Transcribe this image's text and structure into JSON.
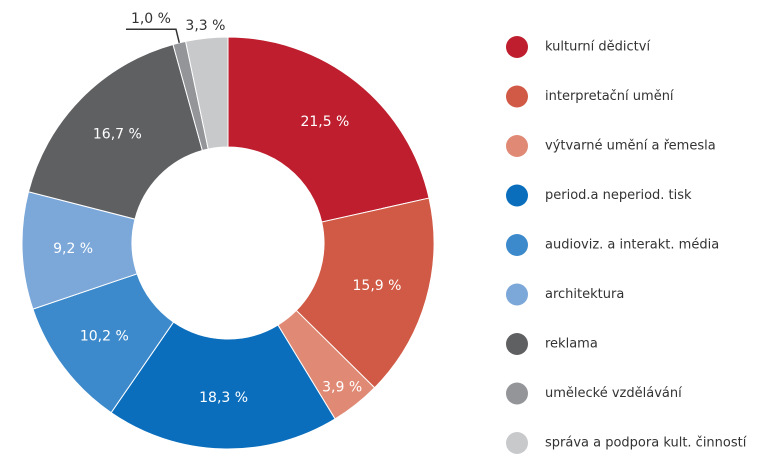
{
  "chart_data": {
    "type": "donut",
    "categories": [
      "kulturní dědictví",
      "interpretační umění",
      "výtvarné umění a řemesla",
      "period.a neperiod. tisk",
      "audioviz. a interakt. média",
      "architektura",
      "reklama",
      "umělecké vzdělávání",
      "správa a podpora kult. činností"
    ],
    "values": [
      21.5,
      15.9,
      3.9,
      18.3,
      10.2,
      9.2,
      16.7,
      1.0,
      3.3
    ],
    "value_labels": [
      "21,5 %",
      "15,9 %",
      "3,9 %",
      "18,3 %",
      "10,2 %",
      "9,2 %",
      "16,7 %",
      "1,0 %",
      "3,3 %"
    ],
    "colors": [
      "#be1e2d",
      "#d05a45",
      "#e08a75",
      "#0a6ebd",
      "#3c8acb",
      "#7ba7d9",
      "#5f6062",
      "#939598",
      "#c8c9cb"
    ],
    "legend": "right"
  }
}
